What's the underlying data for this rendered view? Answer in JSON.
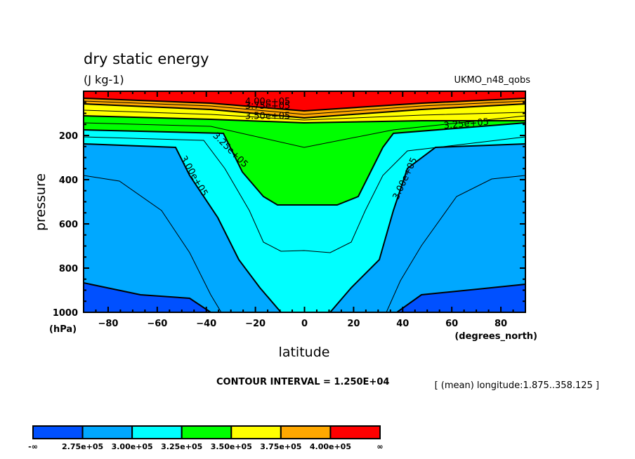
{
  "chart_data": {
    "type": "contour",
    "title": "dry static energy",
    "units": "(J kg-1)",
    "dataset_label": "UKMO_n48_qobs",
    "xlabel": "latitude",
    "xunits": "(degrees_north)",
    "ylabel": "pressure",
    "yunits": "(hPa)",
    "xlim": [
      -90,
      90
    ],
    "ylim": [
      1000,
      0
    ],
    "y_reversed": true,
    "x_ticks": [
      -80,
      -60,
      -40,
      -20,
      0,
      20,
      40,
      60,
      80
    ],
    "y_ticks": [
      200,
      400,
      600,
      800,
      1000
    ],
    "contour_interval_text": "CONTOUR INTERVAL = 1.250E+04",
    "averaging_note": "[ (mean) longitude:1.875..358.125 ]",
    "contour_labels": [
      {
        "text": "4.00e+05",
        "x": -15,
        "p": 60
      },
      {
        "text": "3.75e+05",
        "x": -15,
        "p": 80
      },
      {
        "text": "3.50e+05",
        "x": -15,
        "p": 125
      },
      {
        "text": "3.25e+05",
        "x": 66,
        "p": 160
      },
      {
        "text": "3.25e+05",
        "x": -31,
        "p": 275
      },
      {
        "text": "3.00e+05",
        "x": -46,
        "p": 390
      },
      {
        "text": "3.00e+05",
        "x": 42,
        "p": 400
      }
    ],
    "levels": [
      275000,
      300000,
      325000,
      350000,
      375000,
      400000
    ],
    "colorbar": {
      "labels": [
        "-∞",
        "2.75e+05",
        "3.00e+05",
        "3.25e+05",
        "3.50e+05",
        "3.75e+05",
        "4.00e+05",
        "∞"
      ],
      "colors": [
        "#0050ff",
        "#00a8ff",
        "#00ffff",
        "#00ff00",
        "#ffff00",
        "#ffa800",
        "#ff0000"
      ]
    },
    "regions": [
      {
        "name": "lt-2.75e+05",
        "color": "#0050ff"
      },
      {
        "name": "2.75e+05-3.00e+05",
        "color": "#00a8ff"
      },
      {
        "name": "3.00e+05-3.25e+05",
        "color": "#00ffff"
      },
      {
        "name": "3.25e+05-3.50e+05",
        "color": "#00ff00"
      },
      {
        "name": "3.50e+05-3.75e+05",
        "color": "#ffff00"
      },
      {
        "name": "3.75e+05-4.00e+05",
        "color": "#ffa800"
      },
      {
        "name": "gt-4.00e+05",
        "color": "#ff0000"
      }
    ]
  }
}
